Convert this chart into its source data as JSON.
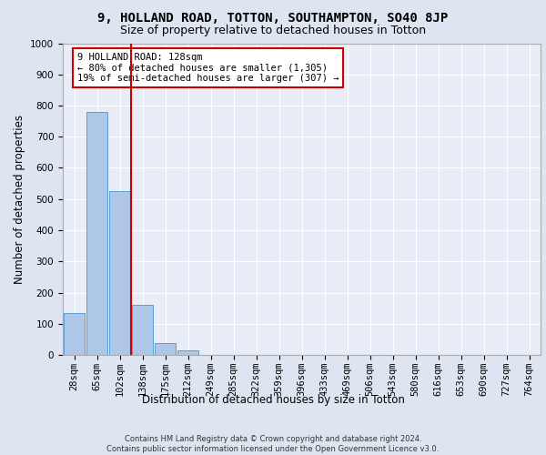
{
  "title_line1": "9, HOLLAND ROAD, TOTTON, SOUTHAMPTON, SO40 8JP",
  "title_line2": "Size of property relative to detached houses in Totton",
  "xlabel": "Distribution of detached houses by size in Totton",
  "ylabel": "Number of detached properties",
  "footer_line1": "Contains HM Land Registry data © Crown copyright and database right 2024.",
  "footer_line2": "Contains public sector information licensed under the Open Government Licence v3.0.",
  "bar_labels": [
    "28sqm",
    "65sqm",
    "102sqm",
    "138sqm",
    "175sqm",
    "212sqm",
    "249sqm",
    "285sqm",
    "322sqm",
    "359sqm",
    "396sqm",
    "433sqm",
    "469sqm",
    "506sqm",
    "543sqm",
    "580sqm",
    "616sqm",
    "653sqm",
    "690sqm",
    "727sqm",
    "764sqm"
  ],
  "bar_values": [
    134,
    779,
    525,
    160,
    38,
    14,
    0,
    0,
    0,
    0,
    0,
    0,
    0,
    0,
    0,
    0,
    0,
    0,
    0,
    0,
    0
  ],
  "bar_color": "#aec6e8",
  "bar_edge_color": "#5a9fd4",
  "vline_x": 2.5,
  "vline_color": "#cc0000",
  "annotation_text": "9 HOLLAND ROAD: 128sqm\n← 80% of detached houses are smaller (1,305)\n19% of semi-detached houses are larger (307) →",
  "annotation_box_color": "#ffffff",
  "annotation_box_edge_color": "#cc0000",
  "ylim": [
    0,
    1000
  ],
  "yticks": [
    0,
    100,
    200,
    300,
    400,
    500,
    600,
    700,
    800,
    900,
    1000
  ],
  "bg_color": "#dde5f0",
  "plot_bg_color": "#e8edf8",
  "title_fontsize": 10,
  "subtitle_fontsize": 9,
  "axis_label_fontsize": 8.5,
  "tick_fontsize": 7.5,
  "annotation_fontsize": 7.5
}
